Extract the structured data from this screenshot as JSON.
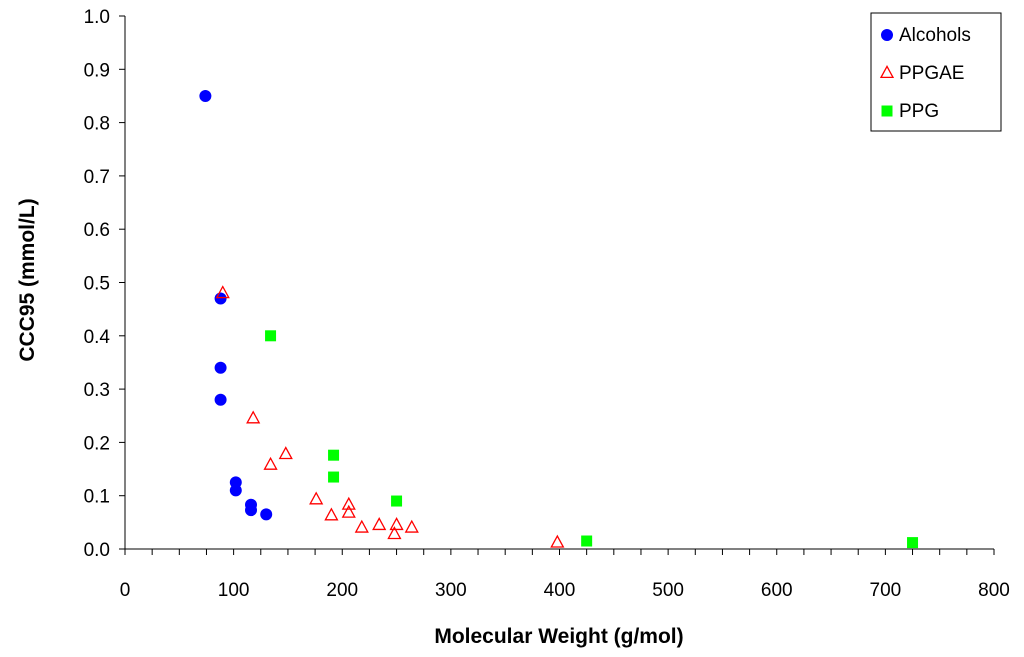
{
  "chart_data": {
    "type": "scatter",
    "title": "",
    "xlabel": "Molecular Weight (g/mol)",
    "ylabel": "CCC95 (mmol/L)",
    "xlim": [
      0,
      800
    ],
    "ylim": [
      0,
      1.0
    ],
    "x_major_ticks": [
      0,
      100,
      200,
      300,
      400,
      500,
      600,
      700,
      800
    ],
    "x_tick_labels": [
      "0",
      "100",
      "200",
      "300",
      "400",
      "500",
      "600",
      "700",
      "800"
    ],
    "x_minor_step": 25,
    "y_major_ticks": [
      0,
      0.1,
      0.2,
      0.3,
      0.4,
      0.5,
      0.6,
      0.7,
      0.8,
      0.9,
      1.0
    ],
    "y_tick_labels": [
      "0.0",
      "0.1",
      "0.2",
      "0.3",
      "0.4",
      "0.5",
      "0.6",
      "0.7",
      "0.8",
      "0.9",
      "1.0"
    ],
    "grid": false,
    "legend_position": "top-right",
    "series": [
      {
        "name": "Alcohols",
        "marker": "circle",
        "color": "#0000ff",
        "points": [
          {
            "x": 74,
            "y": 0.85
          },
          {
            "x": 88,
            "y": 0.47
          },
          {
            "x": 88,
            "y": 0.34
          },
          {
            "x": 88,
            "y": 0.28
          },
          {
            "x": 102,
            "y": 0.125
          },
          {
            "x": 102,
            "y": 0.11
          },
          {
            "x": 116,
            "y": 0.083
          },
          {
            "x": 116,
            "y": 0.073
          },
          {
            "x": 130,
            "y": 0.065
          }
        ]
      },
      {
        "name": "PPGAE",
        "marker": "triangle-open",
        "color": "#ff0000",
        "points": [
          {
            "x": 90,
            "y": 0.48
          },
          {
            "x": 118,
            "y": 0.245
          },
          {
            "x": 134,
            "y": 0.158
          },
          {
            "x": 148,
            "y": 0.178
          },
          {
            "x": 176,
            "y": 0.093
          },
          {
            "x": 190,
            "y": 0.063
          },
          {
            "x": 206,
            "y": 0.083
          },
          {
            "x": 206,
            "y": 0.068
          },
          {
            "x": 218,
            "y": 0.04
          },
          {
            "x": 234,
            "y": 0.045
          },
          {
            "x": 248,
            "y": 0.028
          },
          {
            "x": 250,
            "y": 0.045
          },
          {
            "x": 264,
            "y": 0.04
          },
          {
            "x": 398,
            "y": 0.012
          }
        ]
      },
      {
        "name": "PPG",
        "marker": "square",
        "color": "#00ff00",
        "points": [
          {
            "x": 134,
            "y": 0.4
          },
          {
            "x": 192,
            "y": 0.176
          },
          {
            "x": 192,
            "y": 0.135
          },
          {
            "x": 250,
            "y": 0.09
          },
          {
            "x": 425,
            "y": 0.015
          },
          {
            "x": 725,
            "y": 0.012
          }
        ]
      }
    ]
  }
}
